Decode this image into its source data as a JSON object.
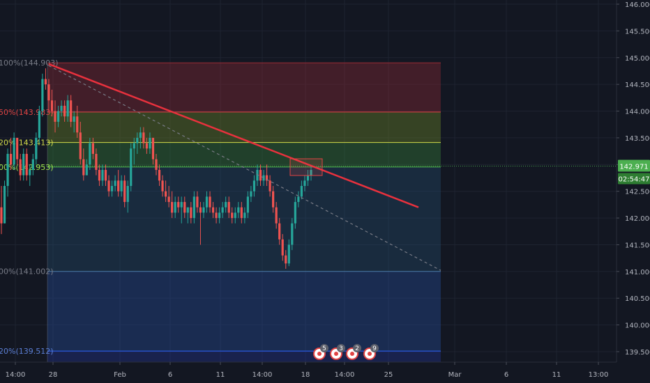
{
  "chart_data": {
    "type": "candlestick",
    "title": "",
    "price_axis": {
      "ticks": [
        "146.000",
        "145.500",
        "145.000",
        "144.500",
        "144.000",
        "143.500",
        "143.000",
        "142.500",
        "142.000",
        "141.500",
        "141.000",
        "140.500",
        "140.000",
        "139.500"
      ],
      "range": [
        139.2,
        146.2
      ]
    },
    "time_axis": {
      "ticks": [
        "14:00",
        "28",
        "Feb",
        "6",
        "11",
        "14:00",
        "18",
        "14:00",
        "25",
        "Mar",
        "6",
        "11",
        "13:00"
      ]
    },
    "last_price": "142.971",
    "countdown": "02:54:47",
    "fib_levels": [
      {
        "label": "100%(144.903)",
        "price": 144.903,
        "color": "#9c2b36",
        "text_color": "#787b86"
      },
      {
        "label": "50%(143.983)",
        "price": 143.983,
        "color": "#e04343",
        "text_color": "#e04343"
      },
      {
        "label": "20%(143.413)",
        "price": 143.413,
        "color": "#d4dd4b",
        "text_color": "#d4dd4b"
      },
      {
        "label": "00%(142.953)",
        "price": 142.953,
        "color": "#4caf50",
        "text_color": "#a6e84c"
      },
      {
        "label": "00%(141.002)",
        "price": 141.002,
        "color": "#4a7ba8",
        "text_color": "#787b86"
      },
      {
        "label": "20%(139.512)",
        "price": 139.512,
        "color": "#2962ff",
        "text_color": "#5b7fd6"
      }
    ],
    "trendline": {
      "start_price": 144.88,
      "end_price": 142.2,
      "color": "#e8313d"
    },
    "dashed_line": {
      "start_price": 144.85,
      "end_price": 141.02,
      "color": "#787b86"
    },
    "candles": [
      [
        142.2,
        142.6,
        141.7,
        141.9
      ],
      [
        141.9,
        142.7,
        141.9,
        142.6
      ],
      [
        142.6,
        143.3,
        142.4,
        143.2
      ],
      [
        143.2,
        143.5,
        142.9,
        143.0
      ],
      [
        143.0,
        143.6,
        142.9,
        143.5
      ],
      [
        143.5,
        143.5,
        143.0,
        143.1
      ],
      [
        143.1,
        143.2,
        142.7,
        142.8
      ],
      [
        142.8,
        143.3,
        142.7,
        143.2
      ],
      [
        143.2,
        143.3,
        142.7,
        142.8
      ],
      [
        142.8,
        143.0,
        142.6,
        142.9
      ],
      [
        142.9,
        143.2,
        142.8,
        143.1
      ],
      [
        143.1,
        143.6,
        143.0,
        143.5
      ],
      [
        143.5,
        144.1,
        143.4,
        144.0
      ],
      [
        144.0,
        144.7,
        143.9,
        144.6
      ],
      [
        144.6,
        144.8,
        144.4,
        144.5
      ],
      [
        144.5,
        144.6,
        144.0,
        144.2
      ],
      [
        144.2,
        144.4,
        143.9,
        144.0
      ],
      [
        144.0,
        144.2,
        143.6,
        143.8
      ],
      [
        143.8,
        144.1,
        143.7,
        144.0
      ],
      [
        144.0,
        144.2,
        143.9,
        144.1
      ],
      [
        144.1,
        144.2,
        143.8,
        143.9
      ],
      [
        143.9,
        144.3,
        143.8,
        144.2
      ],
      [
        144.2,
        144.3,
        143.7,
        143.8
      ],
      [
        143.8,
        144.0,
        143.6,
        143.9
      ],
      [
        143.9,
        144.1,
        143.5,
        143.6
      ],
      [
        143.6,
        143.8,
        143.0,
        143.1
      ],
      [
        143.1,
        143.3,
        142.7,
        142.8
      ],
      [
        142.8,
        143.1,
        142.8,
        143.0
      ],
      [
        143.0,
        143.5,
        142.9,
        143.4
      ],
      [
        143.4,
        143.5,
        143.1,
        143.2
      ],
      [
        143.2,
        143.3,
        142.8,
        142.9
      ],
      [
        142.9,
        143.0,
        142.6,
        142.7
      ],
      [
        142.7,
        143.0,
        142.6,
        142.9
      ],
      [
        142.9,
        143.0,
        142.6,
        142.7
      ],
      [
        142.7,
        142.8,
        142.4,
        142.5
      ],
      [
        142.5,
        142.7,
        142.4,
        142.6
      ],
      [
        142.6,
        142.8,
        142.5,
        142.7
      ],
      [
        142.7,
        142.9,
        142.4,
        142.5
      ],
      [
        142.5,
        142.8,
        142.4,
        142.7
      ],
      [
        142.7,
        142.8,
        142.2,
        142.3
      ],
      [
        142.3,
        142.7,
        142.1,
        142.6
      ],
      [
        142.6,
        143.4,
        142.5,
        143.3
      ],
      [
        143.3,
        143.5,
        143.0,
        143.4
      ],
      [
        143.4,
        143.6,
        143.2,
        143.5
      ],
      [
        143.5,
        143.7,
        143.3,
        143.6
      ],
      [
        143.6,
        143.7,
        143.3,
        143.4
      ],
      [
        143.4,
        143.5,
        143.2,
        143.3
      ],
      [
        143.3,
        143.6,
        143.2,
        143.5
      ],
      [
        143.5,
        143.5,
        143.0,
        143.1
      ],
      [
        143.1,
        143.2,
        142.8,
        142.9
      ],
      [
        142.9,
        143.0,
        142.6,
        142.7
      ],
      [
        142.7,
        142.8,
        142.4,
        142.5
      ],
      [
        142.5,
        142.7,
        142.3,
        142.4
      ],
      [
        142.4,
        142.6,
        142.2,
        142.3
      ],
      [
        142.3,
        142.5,
        142.0,
        142.1
      ],
      [
        142.1,
        142.4,
        142.0,
        142.3
      ],
      [
        142.3,
        142.4,
        142.1,
        142.2
      ],
      [
        142.2,
        142.4,
        141.9,
        142.3
      ],
      [
        142.3,
        142.4,
        142.0,
        142.1
      ],
      [
        142.1,
        142.2,
        141.9,
        142.2
      ],
      [
        142.2,
        142.3,
        141.9,
        142.0
      ],
      [
        142.0,
        142.5,
        141.9,
        142.4
      ],
      [
        142.4,
        142.5,
        142.1,
        142.2
      ],
      [
        142.2,
        142.3,
        141.5,
        142.1
      ],
      [
        142.1,
        142.3,
        142.0,
        142.2
      ],
      [
        142.2,
        142.5,
        142.1,
        142.4
      ],
      [
        142.4,
        142.5,
        142.1,
        142.2
      ],
      [
        142.2,
        142.3,
        142.0,
        142.1
      ],
      [
        142.1,
        142.2,
        141.9,
        142.0
      ],
      [
        142.0,
        142.2,
        141.9,
        142.1
      ],
      [
        142.1,
        142.3,
        142.0,
        142.2
      ],
      [
        142.2,
        142.4,
        142.1,
        142.3
      ],
      [
        142.3,
        142.4,
        142.0,
        142.1
      ],
      [
        142.1,
        142.2,
        141.9,
        142.0
      ],
      [
        142.0,
        142.2,
        141.9,
        142.1
      ],
      [
        142.1,
        142.3,
        142.0,
        142.2
      ],
      [
        142.2,
        142.3,
        141.9,
        142.0
      ],
      [
        142.0,
        142.2,
        141.9,
        142.1
      ],
      [
        142.1,
        142.5,
        142.0,
        142.4
      ],
      [
        142.4,
        142.6,
        142.3,
        142.5
      ],
      [
        142.5,
        142.8,
        142.4,
        142.7
      ],
      [
        142.7,
        143.0,
        142.6,
        142.9
      ],
      [
        142.9,
        143.0,
        142.6,
        142.7
      ],
      [
        142.7,
        142.9,
        142.6,
        142.8
      ],
      [
        142.8,
        143.0,
        142.6,
        142.7
      ],
      [
        142.7,
        142.8,
        142.4,
        142.5
      ],
      [
        142.5,
        142.6,
        142.1,
        142.2
      ],
      [
        142.2,
        142.3,
        141.8,
        141.9
      ],
      [
        141.9,
        142.0,
        141.5,
        141.6
      ],
      [
        141.6,
        141.7,
        141.2,
        141.3
      ],
      [
        141.3,
        141.4,
        141.05,
        141.15
      ],
      [
        141.15,
        141.6,
        141.1,
        141.5
      ],
      [
        141.5,
        142.0,
        141.4,
        141.9
      ],
      [
        141.9,
        142.4,
        141.8,
        142.3
      ],
      [
        142.3,
        142.5,
        142.2,
        142.4
      ],
      [
        142.4,
        142.7,
        142.35,
        142.6
      ],
      [
        142.6,
        142.8,
        142.5,
        142.7
      ],
      [
        142.7,
        142.9,
        142.6,
        142.8
      ],
      [
        142.8,
        142.97,
        142.7,
        142.9
      ]
    ]
  },
  "colors": {
    "up": "#26a69a",
    "down": "#ef5350",
    "background": "#131722",
    "grid": "#1e2330",
    "axis_text": "#b2b5be",
    "price_badge": "#4caf50"
  },
  "events": [
    {
      "icon": "flag-icon",
      "count": "5"
    },
    {
      "icon": "flag-icon",
      "count": "3"
    },
    {
      "icon": "flag-icon",
      "count": "2"
    },
    {
      "icon": "flag-icon",
      "count": "9"
    }
  ]
}
